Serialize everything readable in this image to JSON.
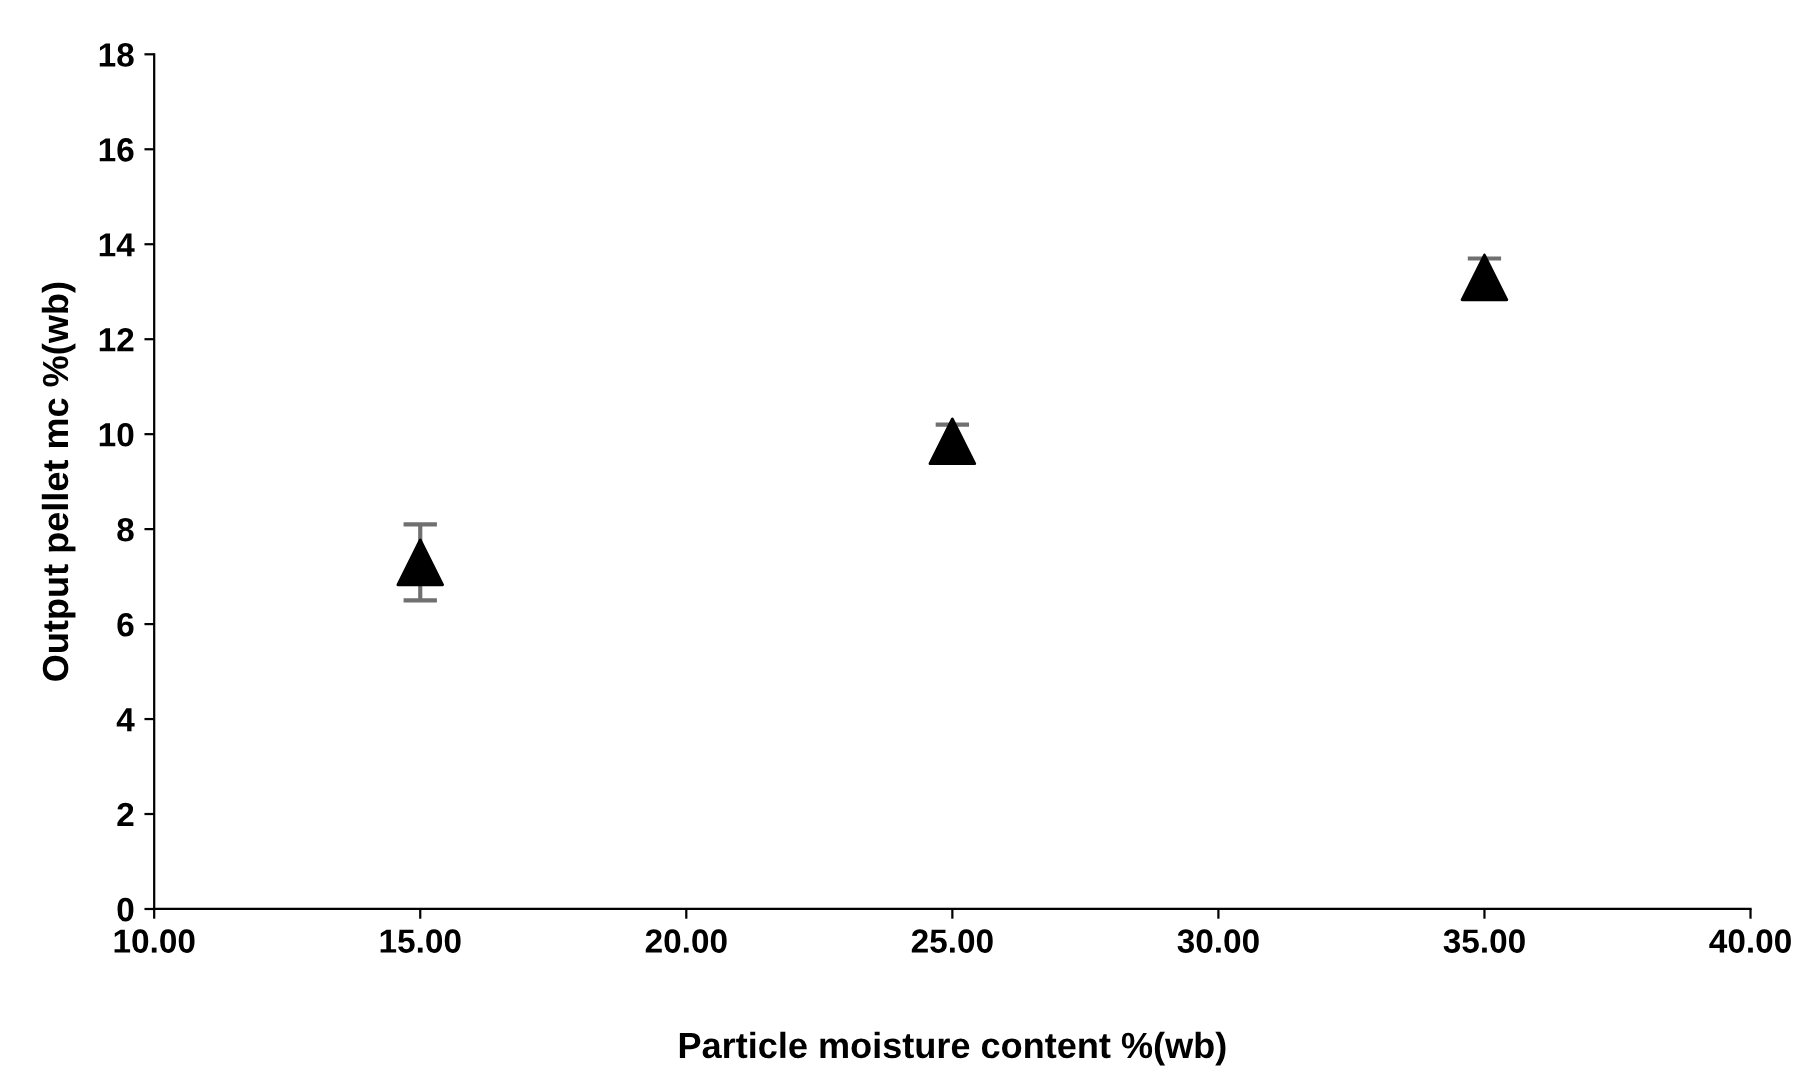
{
  "chart_data": {
    "type": "scatter",
    "xlabel": "Particle moisture content %(wb)",
    "ylabel": "Output pellet mc %(wb)",
    "x": [
      15,
      25,
      35
    ],
    "series": [
      {
        "color": "#000000",
        "values": [
          7.3,
          9.85,
          13.3
        ],
        "errors": [
          0.8,
          0.35,
          0.4
        ]
      }
    ],
    "marker": "triangle",
    "grid": false,
    "legend": false,
    "xlim": [
      10,
      40
    ],
    "xticks": [
      {
        "value": 10,
        "label": "10.00"
      },
      {
        "value": 15,
        "label": "15.00"
      },
      {
        "value": 20,
        "label": "20.00"
      },
      {
        "value": 25,
        "label": "25.00"
      },
      {
        "value": 30,
        "label": "30.00"
      },
      {
        "value": 35,
        "label": "35.00"
      },
      {
        "value": 40,
        "label": "40.00"
      }
    ],
    "ylim": [
      0,
      18
    ],
    "yticks": [
      0,
      2,
      4,
      6,
      8,
      10,
      12,
      14,
      16,
      18
    ]
  }
}
